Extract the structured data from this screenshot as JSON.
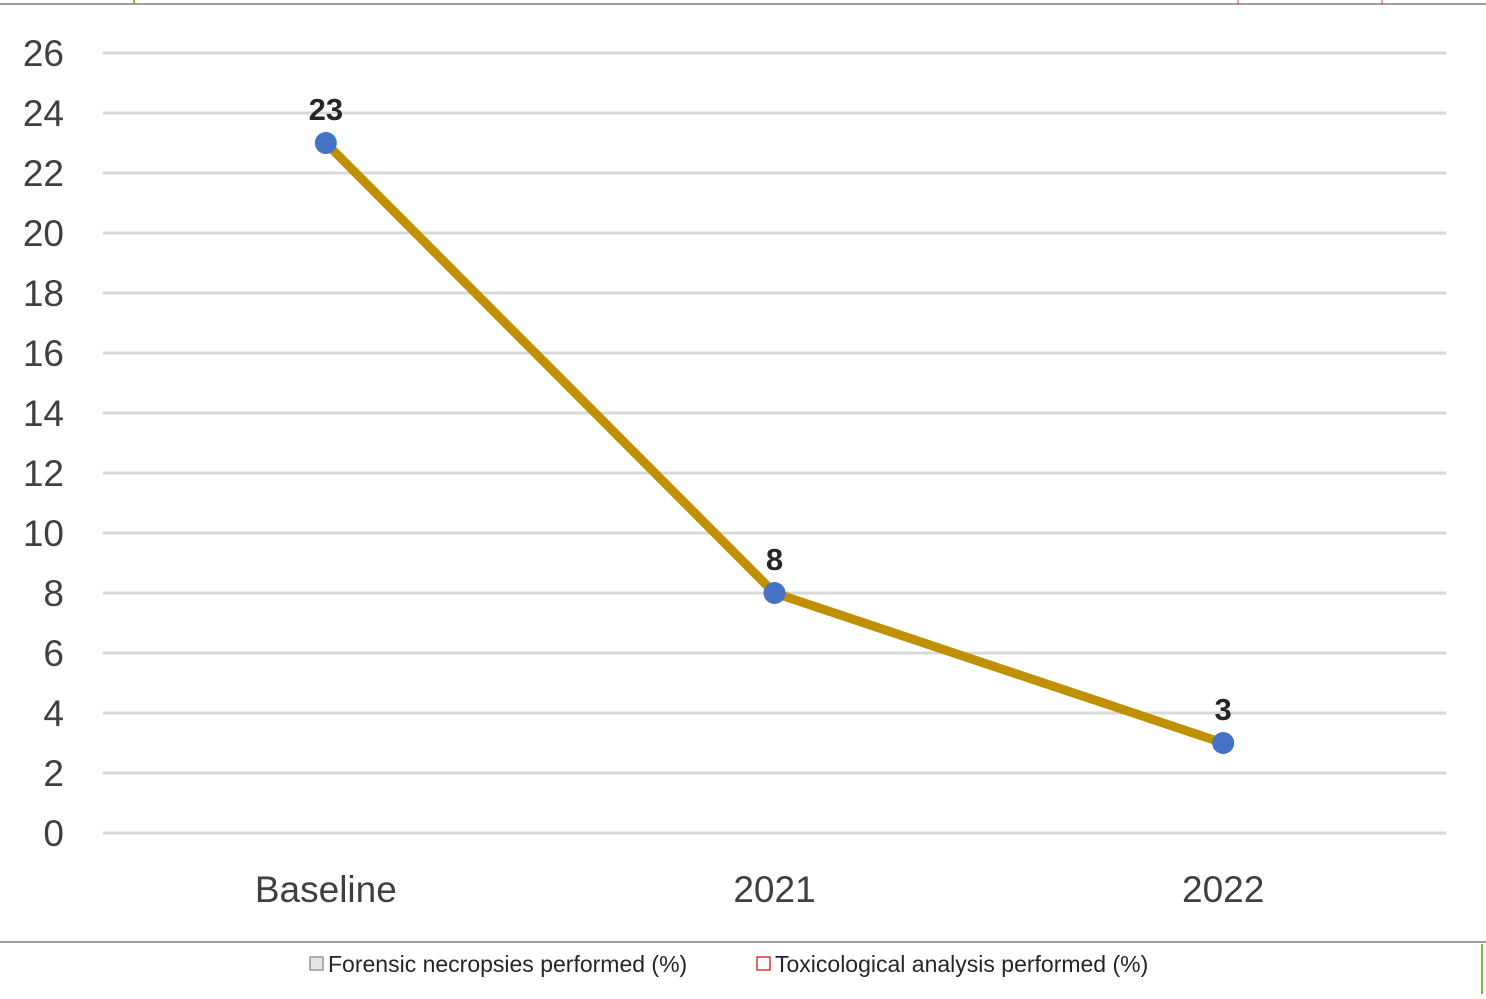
{
  "chart_data": {
    "type": "line",
    "title": "",
    "xlabel": "",
    "ylabel": "",
    "categories": [
      "Baseline",
      "2021",
      "2022"
    ],
    "series": [
      {
        "values": [
          23,
          8,
          3
        ],
        "color": "#BF9000",
        "marker_color": "#4472C4"
      }
    ],
    "data_labels": [
      "23",
      "8",
      "3"
    ],
    "y_ticks": [
      "0",
      "2",
      "4",
      "6",
      "8",
      "10",
      "12",
      "14",
      "16",
      "18",
      "20",
      "22",
      "24",
      "26"
    ],
    "ylim": [
      0,
      26
    ],
    "grid": true,
    "gridline_color": "#D9D9D9"
  },
  "legend": {
    "placement": "bottom",
    "items": [
      {
        "label": "Forensic necropsies performed (%)",
        "color": "#808080"
      },
      {
        "label": "Toxicological analysis performed (%)",
        "color": "#E00000"
      }
    ]
  }
}
